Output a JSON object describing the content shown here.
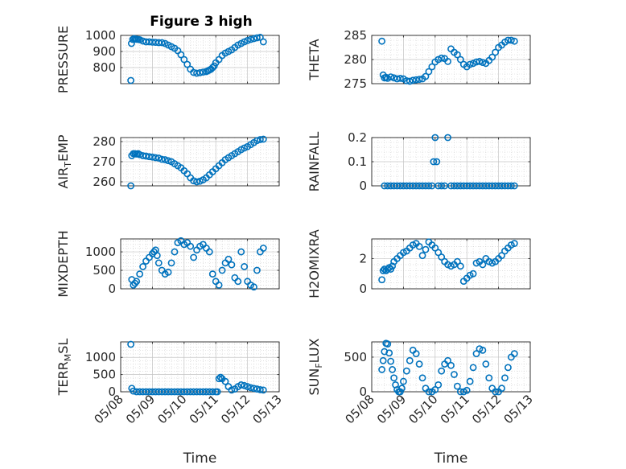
{
  "figure": {
    "title": "Figure 3 high"
  },
  "chart_data": [
    {
      "type": "scatter",
      "panel": "pressure",
      "title": "Figure 3 high",
      "ylabel": {
        "main": "PRESSURE",
        "sub": "",
        "rest": ""
      },
      "xlabel": "",
      "ylim": [
        700,
        1000
      ],
      "yticks": [
        800,
        900,
        1000
      ],
      "xlim": [
        0,
        5
      ],
      "xticks": [
        0,
        1,
        2,
        3,
        4,
        5
      ],
      "xticklabels": [
        "05/08",
        "05/09",
        "05/10",
        "05/11",
        "05/12",
        "05/13"
      ],
      "show_xticklabels": false,
      "grid": true,
      "marker": "open-circle",
      "color": "#0072BD",
      "x": [
        0.32,
        0.34,
        0.38,
        0.42,
        0.46,
        0.5,
        0.55,
        0.6,
        0.7,
        0.8,
        0.9,
        1.0,
        1.1,
        1.2,
        1.3,
        1.4,
        1.5,
        1.6,
        1.7,
        1.8,
        1.9,
        2.0,
        2.1,
        2.2,
        2.3,
        2.4,
        2.5,
        2.6,
        2.7,
        2.75,
        2.8,
        2.85,
        2.9,
        2.95,
        3.0,
        3.1,
        3.2,
        3.3,
        3.4,
        3.5,
        3.6,
        3.7,
        3.8,
        3.9,
        4.0,
        4.1,
        4.2,
        4.3,
        4.4,
        4.5
      ],
      "y": [
        720,
        950,
        975,
        980,
        978,
        976,
        975,
        973,
        965,
        960,
        960,
        958,
        957,
        955,
        955,
        950,
        940,
        930,
        920,
        905,
        880,
        850,
        820,
        790,
        770,
        765,
        768,
        772,
        775,
        780,
        785,
        790,
        800,
        810,
        830,
        850,
        875,
        890,
        900,
        910,
        925,
        940,
        950,
        960,
        968,
        975,
        980,
        985,
        988,
        960
      ]
    },
    {
      "type": "scatter",
      "panel": "theta",
      "ylabel": {
        "main": "THETA",
        "sub": "",
        "rest": ""
      },
      "xlabel": "",
      "ylim": [
        275,
        285
      ],
      "yticks": [
        275,
        280,
        285
      ],
      "xlim": [
        0,
        5
      ],
      "xticks": [
        0,
        1,
        2,
        3,
        4,
        5
      ],
      "xticklabels": [
        "05/08",
        "05/09",
        "05/10",
        "05/11",
        "05/12",
        "05/13"
      ],
      "show_xticklabels": false,
      "grid": true,
      "marker": "open-circle",
      "color": "#0072BD",
      "x": [
        0.32,
        0.36,
        0.4,
        0.45,
        0.5,
        0.6,
        0.7,
        0.8,
        0.9,
        1.0,
        1.1,
        1.2,
        1.3,
        1.4,
        1.5,
        1.6,
        1.7,
        1.8,
        1.9,
        2.0,
        2.1,
        2.2,
        2.3,
        2.4,
        2.5,
        2.6,
        2.7,
        2.8,
        2.9,
        3.0,
        3.1,
        3.2,
        3.3,
        3.4,
        3.5,
        3.6,
        3.7,
        3.8,
        3.9,
        4.0,
        4.1,
        4.2,
        4.3,
        4.4,
        4.5
      ],
      "y": [
        283.8,
        276.8,
        276.2,
        276.3,
        276.1,
        276.4,
        276.2,
        276.0,
        276.1,
        276.0,
        275.6,
        275.5,
        275.7,
        275.8,
        275.9,
        276.0,
        276.5,
        277.5,
        278.5,
        279.5,
        280.0,
        280.3,
        280.2,
        279.6,
        282.2,
        281.5,
        281.0,
        280.0,
        279.0,
        278.5,
        279.0,
        279.2,
        279.5,
        279.6,
        279.4,
        279.2,
        279.8,
        280.5,
        281.5,
        282.5,
        283.0,
        283.6,
        284.0,
        284.0,
        283.8
      ]
    },
    {
      "type": "scatter",
      "panel": "air_temp",
      "ylabel": {
        "main": "AIR",
        "sub": "T",
        "rest": "EMP"
      },
      "xlabel": "",
      "ylim": [
        258,
        282
      ],
      "yticks": [
        260,
        270,
        280
      ],
      "xlim": [
        0,
        5
      ],
      "xticks": [
        0,
        1,
        2,
        3,
        4,
        5
      ],
      "xticklabels": [
        "05/08",
        "05/09",
        "05/10",
        "05/11",
        "05/12",
        "05/13"
      ],
      "show_xticklabels": false,
      "grid": true,
      "marker": "open-circle",
      "color": "#0072BD",
      "x": [
        0.32,
        0.35,
        0.4,
        0.45,
        0.5,
        0.55,
        0.6,
        0.7,
        0.8,
        0.9,
        1.0,
        1.1,
        1.2,
        1.3,
        1.4,
        1.5,
        1.6,
        1.7,
        1.8,
        1.9,
        2.0,
        2.1,
        2.2,
        2.3,
        2.4,
        2.5,
        2.6,
        2.7,
        2.8,
        2.9,
        3.0,
        3.1,
        3.2,
        3.3,
        3.4,
        3.5,
        3.6,
        3.7,
        3.8,
        3.9,
        4.0,
        4.1,
        4.2,
        4.3,
        4.4,
        4.5
      ],
      "y": [
        258,
        273,
        274,
        274,
        273.8,
        274,
        273.5,
        273,
        272.8,
        272.5,
        272.3,
        272,
        271.8,
        271.2,
        271,
        270.5,
        270,
        269,
        268,
        267,
        265.5,
        264,
        262,
        260.5,
        260,
        260.3,
        261,
        262,
        263.5,
        265,
        266.5,
        268,
        269.5,
        271,
        272,
        273,
        274,
        275,
        276,
        276.8,
        277.5,
        278.5,
        279.5,
        280.5,
        281,
        281.2
      ]
    },
    {
      "type": "scatter",
      "panel": "rainfall",
      "ylabel": {
        "main": "RAINFALL",
        "sub": "",
        "rest": ""
      },
      "xlabel": "",
      "ylim": [
        0,
        0.2
      ],
      "yticks": [
        0,
        0.1,
        0.2
      ],
      "xlim": [
        0,
        5
      ],
      "xticks": [
        0,
        1,
        2,
        3,
        4,
        5
      ],
      "xticklabels": [
        "05/08",
        "05/09",
        "05/10",
        "05/11",
        "05/12",
        "05/13"
      ],
      "show_xticklabels": false,
      "grid": true,
      "marker": "open-circle",
      "color": "#0072BD",
      "x": [
        0.4,
        0.5,
        0.6,
        0.7,
        0.8,
        0.9,
        1.0,
        1.1,
        1.2,
        1.3,
        1.4,
        1.5,
        1.6,
        1.7,
        1.8,
        1.9,
        1.95,
        2.0,
        2.05,
        2.1,
        2.2,
        2.3,
        2.4,
        2.5,
        2.6,
        2.7,
        2.8,
        2.9,
        3.0,
        3.1,
        3.2,
        3.3,
        3.4,
        3.5,
        3.6,
        3.7,
        3.8,
        3.9,
        4.0,
        4.1,
        4.2,
        4.3,
        4.4,
        4.5
      ],
      "y": [
        0,
        0,
        0,
        0,
        0,
        0,
        0,
        0,
        0,
        0,
        0,
        0,
        0,
        0,
        0,
        0,
        0.1,
        0.2,
        0.1,
        0,
        0,
        0,
        0.2,
        0,
        0,
        0,
        0,
        0,
        0,
        0,
        0,
        0,
        0,
        0,
        0,
        0,
        0,
        0,
        0,
        0,
        0,
        0,
        0,
        0
      ]
    },
    {
      "type": "scatter",
      "panel": "mixdepth",
      "ylabel": {
        "main": "MIXDEPTH",
        "sub": "",
        "rest": ""
      },
      "xlabel": "",
      "ylim": [
        0,
        1350
      ],
      "yticks": [
        0,
        500,
        1000
      ],
      "xlim": [
        0,
        5
      ],
      "xticks": [
        0,
        1,
        2,
        3,
        4,
        5
      ],
      "xticklabels": [
        "05/08",
        "05/09",
        "05/10",
        "05/11",
        "05/12",
        "05/13"
      ],
      "show_xticklabels": false,
      "grid": true,
      "marker": "open-circle",
      "color": "#0072BD",
      "x": [
        0.35,
        0.4,
        0.45,
        0.5,
        0.6,
        0.7,
        0.8,
        0.9,
        1.0,
        1.05,
        1.1,
        1.15,
        1.2,
        1.3,
        1.4,
        1.5,
        1.6,
        1.7,
        1.8,
        1.9,
        2.0,
        2.1,
        2.2,
        2.3,
        2.4,
        2.5,
        2.6,
        2.7,
        2.8,
        2.9,
        3.0,
        3.1,
        3.2,
        3.3,
        3.4,
        3.5,
        3.6,
        3.7,
        3.8,
        3.9,
        4.0,
        4.1,
        4.2,
        4.3,
        4.4,
        4.5
      ],
      "y": [
        250,
        100,
        150,
        200,
        400,
        600,
        750,
        850,
        950,
        1000,
        1050,
        900,
        700,
        500,
        400,
        450,
        700,
        1000,
        1250,
        1300,
        1200,
        1250,
        1150,
        850,
        1050,
        1150,
        1200,
        1100,
        1000,
        400,
        200,
        100,
        500,
        700,
        800,
        650,
        300,
        200,
        1000,
        600,
        200,
        100,
        50,
        500,
        1000,
        1100
      ]
    },
    {
      "type": "scatter",
      "panel": "h2omixra",
      "ylabel": {
        "main": "H2OMIXRA",
        "sub": "",
        "rest": ""
      },
      "xlabel": "",
      "ylim": [
        0,
        3.3
      ],
      "yticks": [
        0,
        2
      ],
      "xlim": [
        0,
        5
      ],
      "xticks": [
        0,
        1,
        2,
        3,
        4,
        5
      ],
      "xticklabels": [
        "05/08",
        "05/09",
        "05/10",
        "05/11",
        "05/12",
        "05/13"
      ],
      "show_xticklabels": false,
      "grid": true,
      "marker": "open-circle",
      "color": "#0072BD",
      "x": [
        0.32,
        0.36,
        0.4,
        0.45,
        0.5,
        0.55,
        0.6,
        0.65,
        0.7,
        0.8,
        0.9,
        1.0,
        1.1,
        1.2,
        1.3,
        1.4,
        1.5,
        1.6,
        1.7,
        1.8,
        1.9,
        2.0,
        2.1,
        2.2,
        2.3,
        2.4,
        2.5,
        2.6,
        2.7,
        2.8,
        2.9,
        3.0,
        3.1,
        3.2,
        3.3,
        3.4,
        3.5,
        3.6,
        3.7,
        3.8,
        3.9,
        4.0,
        4.1,
        4.2,
        4.3,
        4.4,
        4.5
      ],
      "y": [
        0.6,
        1.2,
        1.3,
        1.2,
        1.3,
        1.4,
        1.3,
        1.5,
        1.8,
        2.0,
        2.2,
        2.4,
        2.5,
        2.7,
        2.9,
        3.0,
        2.8,
        2.2,
        2.6,
        3.1,
        2.9,
        2.7,
        2.4,
        2.1,
        1.8,
        1.6,
        1.5,
        1.6,
        1.8,
        1.5,
        0.5,
        0.7,
        0.9,
        1.0,
        1.7,
        1.8,
        1.6,
        2.0,
        1.8,
        1.7,
        1.8,
        2.0,
        2.2,
        2.5,
        2.7,
        2.9,
        3.0
      ]
    },
    {
      "type": "scatter",
      "panel": "terr_msl",
      "ylabel": {
        "main": "TERR",
        "sub": "M",
        "rest": "SL"
      },
      "xlabel": "Time",
      "ylim": [
        0,
        1450
      ],
      "yticks": [
        0,
        500,
        1000
      ],
      "xlim": [
        0,
        5
      ],
      "xticks": [
        0,
        1,
        2,
        3,
        4,
        5
      ],
      "xticklabels": [
        "05/08",
        "05/09",
        "05/10",
        "05/11",
        "05/12",
        "05/13"
      ],
      "show_xticklabels": true,
      "grid": true,
      "marker": "open-circle",
      "color": "#0072BD",
      "x": [
        0.32,
        0.35,
        0.4,
        0.5,
        0.6,
        0.7,
        0.8,
        0.9,
        1.0,
        1.1,
        1.2,
        1.3,
        1.4,
        1.5,
        1.6,
        1.7,
        1.8,
        1.9,
        2.0,
        2.1,
        2.2,
        2.3,
        2.4,
        2.5,
        2.6,
        2.7,
        2.8,
        2.9,
        3.0,
        3.05,
        3.1,
        3.15,
        3.2,
        3.3,
        3.4,
        3.5,
        3.6,
        3.7,
        3.8,
        3.9,
        4.0,
        4.1,
        4.2,
        4.3,
        4.4,
        4.5
      ],
      "y": [
        1380,
        100,
        20,
        0,
        0,
        0,
        0,
        0,
        0,
        0,
        0,
        0,
        0,
        0,
        0,
        0,
        0,
        0,
        0,
        0,
        0,
        0,
        0,
        0,
        0,
        0,
        0,
        0,
        0,
        0,
        380,
        420,
        380,
        300,
        150,
        50,
        80,
        150,
        200,
        180,
        150,
        120,
        100,
        80,
        60,
        50
      ]
    },
    {
      "type": "scatter",
      "panel": "sun_flux",
      "ylabel": {
        "main": "SUN",
        "sub": "F",
        "rest": "LUX"
      },
      "xlabel": "Time",
      "ylim": [
        0,
        720
      ],
      "yticks": [
        0,
        500
      ],
      "xlim": [
        0,
        5
      ],
      "xticks": [
        0,
        1,
        2,
        3,
        4,
        5
      ],
      "xticklabels": [
        "05/08",
        "05/09",
        "05/10",
        "05/11",
        "05/12",
        "05/13"
      ],
      "show_xticklabels": true,
      "grid": true,
      "marker": "open-circle",
      "color": "#0072BD",
      "x": [
        0.32,
        0.36,
        0.4,
        0.45,
        0.5,
        0.55,
        0.6,
        0.65,
        0.7,
        0.75,
        0.8,
        0.85,
        0.9,
        0.95,
        1.0,
        1.1,
        1.2,
        1.3,
        1.4,
        1.5,
        1.6,
        1.7,
        1.8,
        1.9,
        2.0,
        2.1,
        2.2,
        2.3,
        2.4,
        2.5,
        2.6,
        2.7,
        2.8,
        2.9,
        3.0,
        3.1,
        3.2,
        3.3,
        3.4,
        3.5,
        3.6,
        3.7,
        3.8,
        3.9,
        4.0,
        4.1,
        4.2,
        4.3,
        4.4,
        4.5
      ],
      "y": [
        320,
        450,
        580,
        700,
        690,
        560,
        440,
        320,
        200,
        100,
        30,
        0,
        0,
        50,
        150,
        300,
        450,
        600,
        550,
        400,
        200,
        50,
        0,
        0,
        30,
        100,
        300,
        400,
        450,
        380,
        250,
        80,
        0,
        0,
        20,
        150,
        350,
        550,
        620,
        600,
        400,
        200,
        50,
        0,
        0,
        50,
        200,
        350,
        500,
        550
      ]
    }
  ]
}
